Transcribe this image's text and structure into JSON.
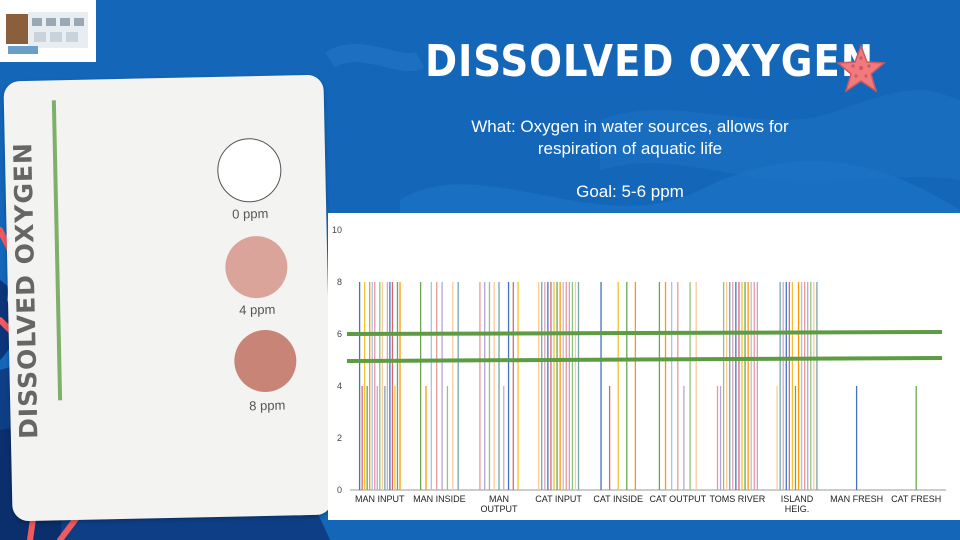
{
  "slide": {
    "title": "DISSOLVED OXYGEN",
    "what_line1": "What: Oxygen in water sources, allows for",
    "what_line2": "respiration of aquatic life",
    "goal": "Goal: 5-6 ppm"
  },
  "card": {
    "label": "DISSOLVED OXYGEN",
    "swatches": [
      {
        "label": "0 ppm",
        "color": "#ffffff"
      },
      {
        "label": "4 ppm",
        "color": "#dba49a"
      },
      {
        "label": "8 ppm",
        "color": "#c98478"
      }
    ]
  },
  "colors": {
    "background": "#1466b8",
    "accent_starfish": "#f07a7e",
    "coral": "#f05a5e",
    "goal_line": "#5e9c44"
  },
  "icons": [
    "starfish-icon",
    "coral-decoration",
    "product-thumbnail"
  ],
  "chart_data": {
    "type": "bar",
    "categories": [
      "MAN INPUT",
      "MAN INSIDE",
      "MAN OUTPUT",
      "CAT INPUT",
      "CAT INSIDE",
      "CAT OUTPUT",
      "TOMS RIVER",
      "ISLAND HEIG.",
      "MAN FRESH",
      "CAT FRESH"
    ],
    "category_lines": [
      [
        "MAN INPUT"
      ],
      [
        "MAN INSIDE"
      ],
      [
        "MAN",
        "OUTPUT"
      ],
      [
        "CAT INPUT"
      ],
      [
        "CAT INSIDE"
      ],
      [
        "CAT OUTPUT"
      ],
      [
        "TOMS RIVER"
      ],
      [
        "ISLAND",
        "HEIG."
      ],
      [
        "MAN FRESH"
      ],
      [
        "CAT FRESH"
      ]
    ],
    "y_ticks": [
      "0",
      "2",
      "4",
      "6",
      "8",
      "10"
    ],
    "ylim": [
      0,
      10
    ],
    "bar_colors": [
      "#4472c4",
      "#e06666",
      "#f1c232",
      "#6aa84f",
      "#ff9900",
      "#a4c2f4",
      "#ea9999",
      "#b4a7d6",
      "#93c47d",
      "#f9cb9c",
      "#76a5af",
      "#d5a6bd"
    ],
    "values": [
      [
        8,
        4,
        8,
        4,
        8,
        8,
        8,
        4,
        8,
        8,
        4,
        8,
        8,
        8,
        4,
        8,
        8
      ],
      [
        8,
        4,
        8,
        8,
        8,
        4,
        8,
        8
      ],
      [
        8,
        8,
        8,
        8,
        8,
        4,
        8,
        8,
        8
      ],
      [
        8,
        8,
        8,
        8,
        8,
        8,
        8,
        8,
        8,
        8,
        8,
        8,
        8,
        8
      ],
      [
        8,
        4,
        8,
        8,
        8
      ],
      [
        8,
        8,
        8,
        8,
        4,
        8,
        8
      ],
      [
        4,
        4,
        8,
        8,
        8,
        8,
        8,
        8,
        8,
        8,
        8,
        8,
        8,
        8
      ],
      [
        4,
        8,
        8,
        8,
        8,
        8,
        4,
        8,
        8,
        8,
        8,
        8,
        8,
        8
      ],
      [
        4
      ],
      [
        4
      ]
    ],
    "goal_range": [
      5,
      6
    ],
    "grid": false
  }
}
